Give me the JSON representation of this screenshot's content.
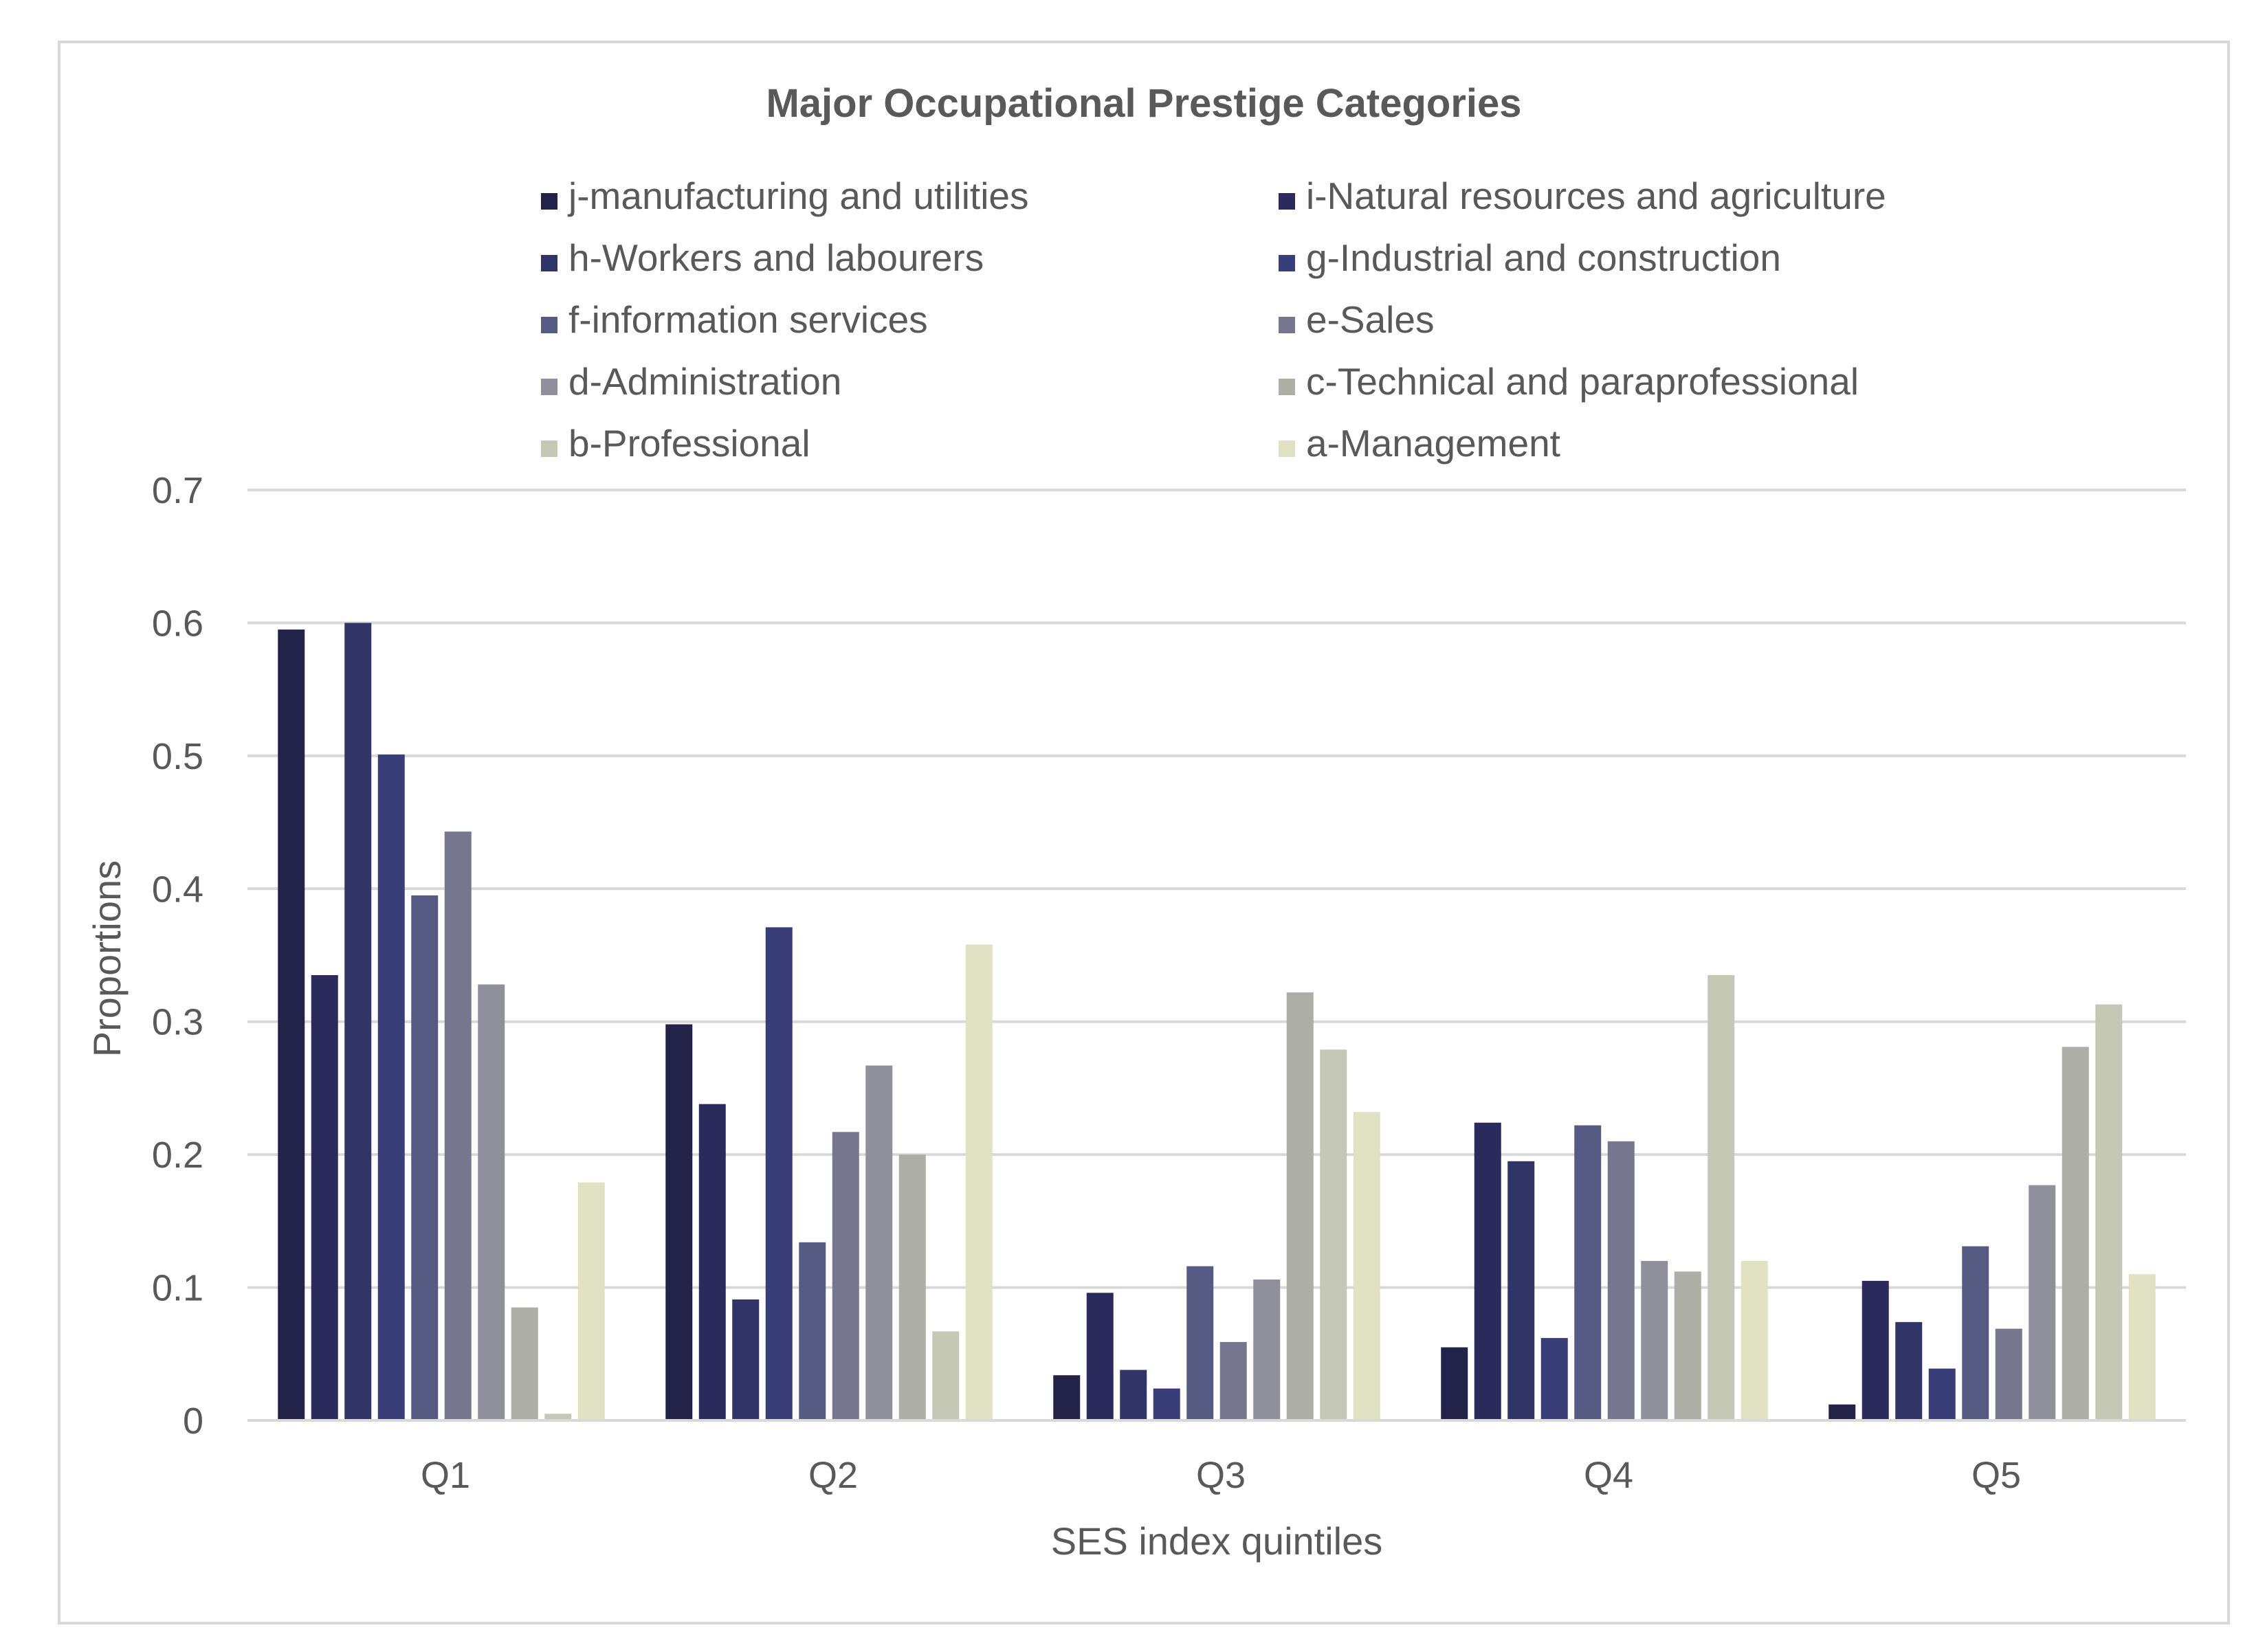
{
  "chart_data": {
    "type": "bar",
    "title": "Major Occupational Prestige Categories",
    "xlabel": "SES index quintiles",
    "ylabel": "Proportions",
    "ylim": [
      0,
      0.7
    ],
    "yticks": [
      "0",
      "0.1",
      "0.2",
      "0.3",
      "0.4",
      "0.5",
      "0.6",
      "0.7"
    ],
    "grid": true,
    "legend_position": "top",
    "categories": [
      "Q1",
      "Q2",
      "Q3",
      "Q4",
      "Q5"
    ],
    "series": [
      {
        "name": "j-manufacturing and utilities",
        "color": "#23234a",
        "values": [
          0.595,
          0.298,
          0.034,
          0.055,
          0.012
        ]
      },
      {
        "name": "i-Natural resources and agriculture",
        "color": "#2a2b5c",
        "values": [
          0.335,
          0.238,
          0.096,
          0.224,
          0.105
        ]
      },
      {
        "name": "h-Workers and labourers",
        "color": "#303466",
        "values": [
          0.6,
          0.091,
          0.038,
          0.195,
          0.074
        ]
      },
      {
        "name": "g-Industrial and construction",
        "color": "#393d78",
        "values": [
          0.501,
          0.371,
          0.024,
          0.062,
          0.039
        ]
      },
      {
        "name": "f-information services",
        "color": "#565b84",
        "values": [
          0.395,
          0.134,
          0.116,
          0.222,
          0.131
        ]
      },
      {
        "name": "e-Sales",
        "color": "#76778f",
        "values": [
          0.443,
          0.217,
          0.059,
          0.21,
          0.069
        ]
      },
      {
        "name": "d-Administration",
        "color": "#8f909c",
        "values": [
          0.328,
          0.267,
          0.106,
          0.12,
          0.177
        ]
      },
      {
        "name": "c-Technical and paraprofessional",
        "color": "#adaea6",
        "values": [
          0.085,
          0.2,
          0.322,
          0.112,
          0.281
        ]
      },
      {
        "name": "b-Professional",
        "color": "#c6c8b6",
        "values": [
          0.005,
          0.067,
          0.279,
          0.335,
          0.313
        ]
      },
      {
        "name": "a-Management",
        "color": "#e1e1c4",
        "values": [
          0.179,
          0.358,
          0.232,
          0.12,
          0.11
        ]
      }
    ]
  }
}
